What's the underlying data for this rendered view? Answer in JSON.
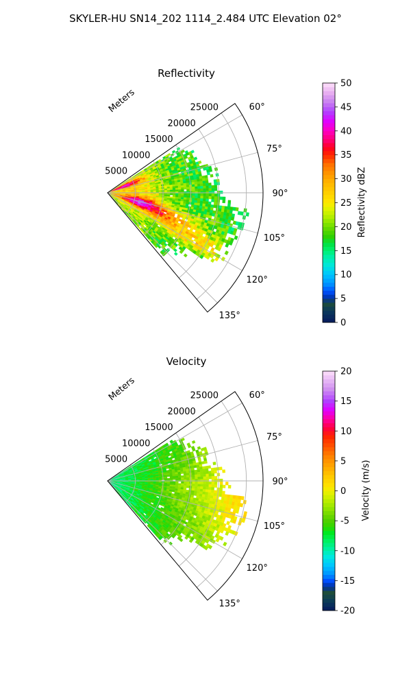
{
  "figure": {
    "suptitle": "SKYLER-HU  SN14_202  1114_2.484 UTC Elevation 02°"
  },
  "chart_data": [
    {
      "type": "heatmap",
      "subtype": "polar-sector-ppi",
      "title": "Reflectivity",
      "radial_label": "Meters",
      "r_ticks": [
        5000,
        10000,
        15000,
        20000,
        25000
      ],
      "r_tick_labels": [
        "5000",
        "10000",
        "15000",
        "20000",
        "25000"
      ],
      "theta_range_deg": [
        55,
        140
      ],
      "theta_ticks": [
        60,
        75,
        90,
        105,
        120,
        135
      ],
      "theta_tick_labels": [
        "60°",
        "75°",
        "90°",
        "105°",
        "120°",
        "135°"
      ],
      "r_max": 28000,
      "grid": true,
      "colorbar": {
        "label": "Reflectivity dBZ",
        "range": [
          0,
          50
        ],
        "ticks": [
          "0",
          "5",
          "10",
          "15",
          "20",
          "25",
          "30",
          "35",
          "40",
          "45",
          "50"
        ]
      },
      "field_description": "Values mostly 18–30 dBZ; strongest 35–40 dBZ streaks near 60–70° and 100–110° at short range; scattered green 18–22 dBZ returns at far range.",
      "field": {
        "base": 21,
        "range_falloff": 5,
        "features": [
          {
            "theta": 68,
            "r": 3000,
            "peak": 38,
            "sigma_theta": 4,
            "sigma_r": 2500
          },
          {
            "theta": 104,
            "r": 6000,
            "peak": 36,
            "sigma_theta": 5,
            "sigma_r": 2500
          },
          {
            "theta": 110,
            "r": 10000,
            "peak": 33,
            "sigma_theta": 4,
            "sigma_r": 5000
          },
          {
            "theta": 90,
            "r": 4000,
            "peak": 28,
            "sigma_theta": 25,
            "sigma_r": 4000
          },
          {
            "theta": 118,
            "r": 18000,
            "peak": 30,
            "sigma_theta": 4,
            "sigma_r": 6000
          },
          {
            "theta": 100,
            "r": 20000,
            "peak": 22,
            "sigma_theta": 5,
            "sigma_r": 4000
          }
        ]
      }
    },
    {
      "type": "heatmap",
      "subtype": "polar-sector-ppi",
      "title": "Velocity",
      "radial_label": "Meters",
      "r_ticks": [
        5000,
        10000,
        15000,
        20000,
        25000
      ],
      "r_tick_labels": [
        "5000",
        "10000",
        "15000",
        "20000",
        "25000"
      ],
      "theta_range_deg": [
        55,
        140
      ],
      "theta_ticks": [
        60,
        75,
        90,
        105,
        120,
        135
      ],
      "theta_tick_labels": [
        "60°",
        "75°",
        "90°",
        "105°",
        "120°",
        "135°"
      ],
      "r_max": 28000,
      "grid": true,
      "colorbar": {
        "label": "Velocity (m/s)",
        "range": [
          -20,
          20
        ],
        "ticks": [
          "-20",
          "-15",
          "-10",
          "-5",
          "0",
          "5",
          "10",
          "15",
          "20"
        ]
      },
      "field_description": "Near-radar velocities around -9 to -7 m/s increasing with range to about -3 m/s, reaching 0 to +1 m/s at far range near 90–105°.",
      "field": {
        "near_value": -9,
        "far_value": 0.5,
        "far_bonus_center_theta": 95,
        "far_bonus_sigma": 14
      }
    }
  ]
}
